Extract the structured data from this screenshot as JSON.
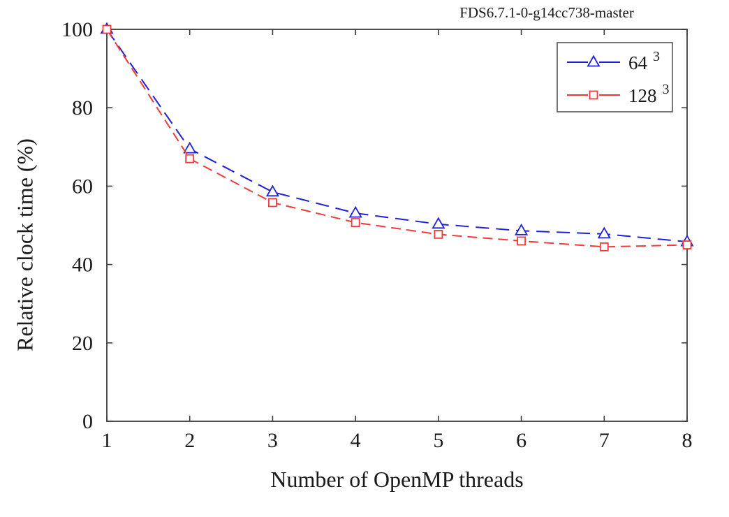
{
  "window": {
    "background": "#ffffff"
  },
  "header": {
    "title": "FDS6.7.1-0-g14cc738-master"
  },
  "colors": {
    "series_64": "#2020D8",
    "series_128": "#F03A3A",
    "axis": "#3c3c3c",
    "text": "#1a1a1a",
    "legend_border": "#555555"
  },
  "chart_data": {
    "type": "line",
    "title": "FDS6.7.1-0-g14cc738-master",
    "xlabel": "Number of OpenMP threads",
    "ylabel": "Relative clock time (%)",
    "x": [
      1,
      2,
      3,
      4,
      5,
      6,
      7,
      8
    ],
    "xlim": [
      1,
      8
    ],
    "ylim": [
      0,
      100
    ],
    "xticks": [
      1,
      2,
      3,
      4,
      5,
      6,
      7,
      8
    ],
    "yticks": [
      0,
      20,
      40,
      60,
      80,
      100
    ],
    "grid": false,
    "legend_position": "top-right",
    "series": [
      {
        "name": "64^3",
        "label_base": "64",
        "label_sup": "3",
        "marker": "triangle",
        "linestyle": "dashed",
        "color": "#2020D8",
        "values": [
          100,
          69.5,
          58.5,
          53.1,
          50.3,
          48.6,
          47.8,
          45.8
        ]
      },
      {
        "name": "128^3",
        "label_base": "128",
        "label_sup": "3",
        "marker": "square",
        "linestyle": "dashed",
        "color": "#F03A3A",
        "values": [
          100,
          67.0,
          55.8,
          50.7,
          47.7,
          46.0,
          44.5,
          45.0
        ]
      }
    ]
  }
}
